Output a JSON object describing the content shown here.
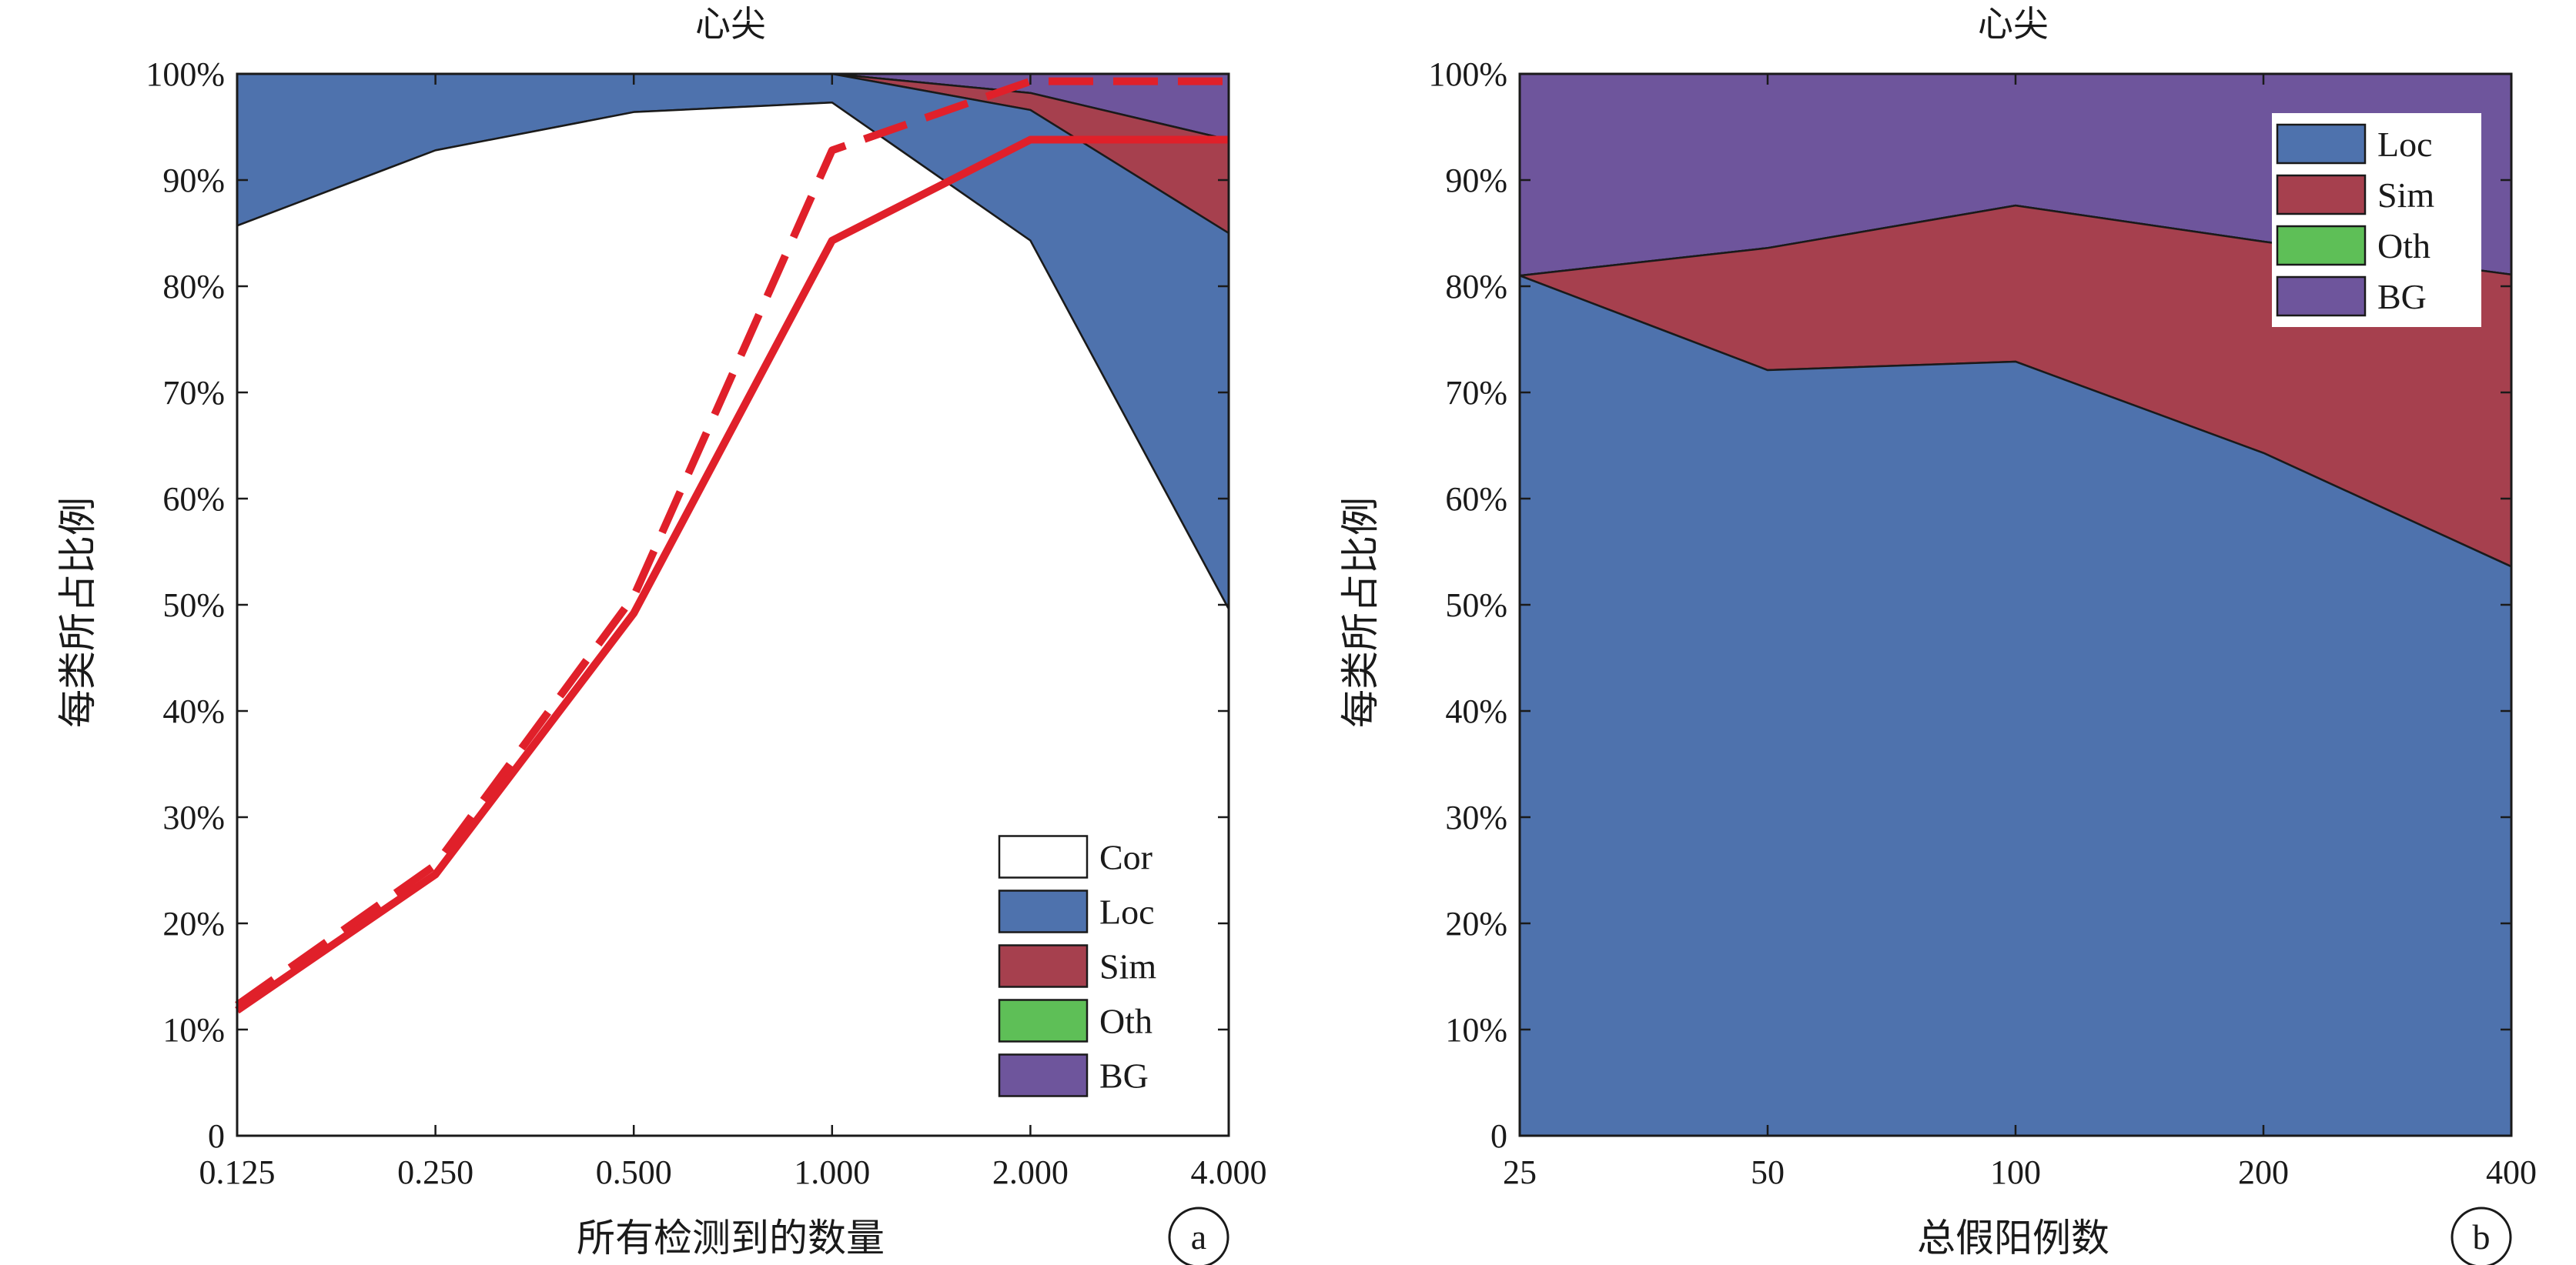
{
  "chart_data": [
    {
      "panel": "a",
      "type": "area",
      "title": "心尖",
      "xlabel": "所有检测到的数量",
      "ylabel": "每类所占比例",
      "x_scale": "log2",
      "x": [
        0.125,
        0.25,
        0.5,
        1.0,
        2.0,
        4.0
      ],
      "x_tick_labels": [
        "0.125",
        "0.250",
        "0.500",
        "1.000",
        "2.000",
        "4.000"
      ],
      "ylim": [
        0,
        100
      ],
      "y_tick_labels": [
        "0",
        "10%",
        "20%",
        "30%",
        "40%",
        "50%",
        "60%",
        "70%",
        "80%",
        "90%",
        "100%"
      ],
      "stack_order": [
        "Cor",
        "Loc",
        "Sim",
        "Oth",
        "BG"
      ],
      "series": [
        {
          "name": "Cor",
          "color": "#ffffff",
          "cumulative": [
            85.7,
            92.8,
            96.4,
            97.3,
            84.3,
            49.6
          ]
        },
        {
          "name": "Loc",
          "color": "#4e72ad",
          "cumulative": [
            100,
            100,
            100,
            100,
            96.6,
            85.0
          ]
        },
        {
          "name": "Sim",
          "color": "#a6404e",
          "cumulative": [
            100,
            100,
            100,
            100,
            98.2,
            93.8
          ]
        },
        {
          "name": "Oth",
          "color": "#5ebf57",
          "cumulative": [
            100,
            100,
            100,
            100,
            98.2,
            93.8
          ]
        },
        {
          "name": "BG",
          "color": "#6e559c",
          "cumulative": [
            100,
            100,
            100,
            100,
            100,
            100
          ]
        }
      ],
      "lines": [
        {
          "style": "solid",
          "color": "#e0202a",
          "values": [
            11.8,
            24.6,
            49.2,
            84.3,
            93.8,
            93.8
          ]
        },
        {
          "style": "dashed",
          "color": "#e0202a",
          "values": [
            12.3,
            25.5,
            50.8,
            92.8,
            99.3,
            99.3
          ]
        }
      ],
      "legend": {
        "position": "bottom-right",
        "entries": [
          "Cor",
          "Loc",
          "Sim",
          "Oth",
          "BG"
        ]
      },
      "panel_label": "a"
    },
    {
      "panel": "b",
      "type": "area",
      "title": "心尖",
      "xlabel": "总假阳例数",
      "ylabel": "每类所占比例",
      "x": [
        25,
        50,
        100,
        200,
        400
      ],
      "x_tick_labels": [
        "25",
        "50",
        "100",
        "200",
        "400"
      ],
      "ylim": [
        0,
        100
      ],
      "y_tick_labels": [
        "0",
        "10%",
        "20%",
        "30%",
        "40%",
        "50%",
        "60%",
        "70%",
        "80%",
        "90%",
        "100%"
      ],
      "stack_order": [
        "Loc",
        "Sim",
        "Oth",
        "BG"
      ],
      "series": [
        {
          "name": "Loc",
          "color": "#4e72ad",
          "cumulative": [
            81.0,
            72.1,
            72.9,
            64.3,
            53.6
          ]
        },
        {
          "name": "Sim",
          "color": "#a6404e",
          "cumulative": [
            81.0,
            83.6,
            87.6,
            84.2,
            81.1
          ]
        },
        {
          "name": "Oth",
          "color": "#5ebf57",
          "cumulative": [
            81.0,
            83.6,
            87.6,
            84.2,
            81.1
          ]
        },
        {
          "name": "BG",
          "color": "#6e559c",
          "cumulative": [
            100,
            100,
            100,
            100,
            100
          ]
        }
      ],
      "legend": {
        "position": "top-right",
        "entries": [
          "Loc",
          "Sim",
          "Oth",
          "BG"
        ]
      },
      "panel_label": "b"
    }
  ]
}
